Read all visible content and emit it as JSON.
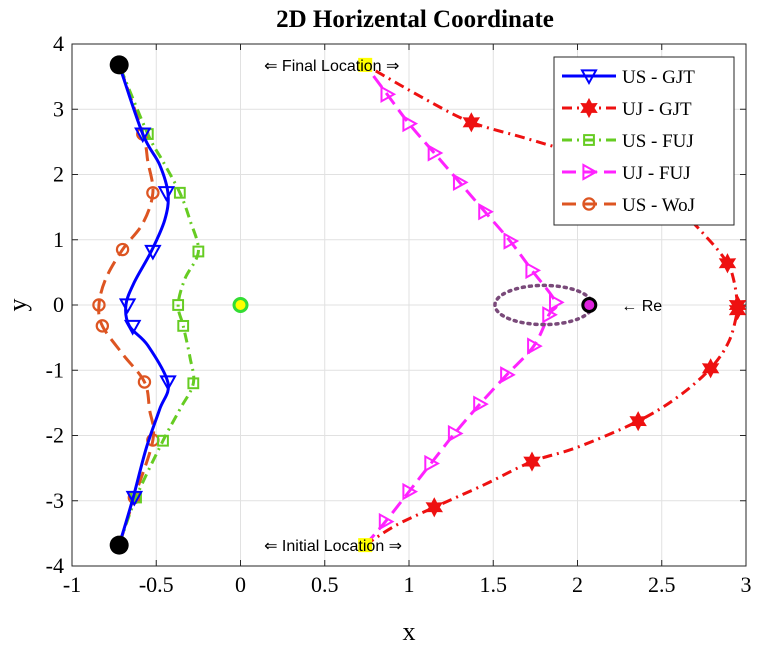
{
  "chart_data": {
    "type": "line",
    "title": "2D Horizental Coordinate",
    "xlabel": "x",
    "ylabel": "y",
    "xlim": [
      -1,
      3
    ],
    "ylim": [
      -4,
      4
    ],
    "grid": true,
    "legend_position": "top-right",
    "xticks": [
      -1,
      -0.5,
      0,
      0.5,
      1,
      1.5,
      2,
      2.5,
      3
    ],
    "xtick_labels": [
      "-1",
      "-0.5",
      "0",
      "0.5",
      "1",
      "1.5",
      "2",
      "2.5",
      "3"
    ],
    "yticks": [
      -4,
      -3,
      -2,
      -1,
      0,
      1,
      2,
      3,
      4
    ],
    "ytick_labels": [
      "-4",
      "-3",
      "-2",
      "-1",
      "0",
      "1",
      "2",
      "3",
      "4"
    ],
    "series": [
      {
        "name": "US - GJT",
        "color": "#0000ff",
        "line": "solid",
        "marker": "triangle-down",
        "curve": [
          [
            -0.72,
            -3.68
          ],
          [
            -0.64,
            -2.98
          ],
          [
            -0.56,
            -2.2
          ],
          [
            -0.48,
            -1.6
          ],
          [
            -0.43,
            -1.2
          ],
          [
            -0.55,
            -0.62
          ],
          [
            -0.66,
            -0.32
          ],
          [
            -0.68,
            0.0
          ],
          [
            -0.63,
            0.35
          ],
          [
            -0.53,
            0.82
          ],
          [
            -0.45,
            1.3
          ],
          [
            -0.43,
            1.7
          ],
          [
            -0.48,
            2.15
          ],
          [
            -0.58,
            2.62
          ],
          [
            -0.72,
            3.68
          ]
        ],
        "markers": [
          [
            -0.63,
            -2.95
          ],
          [
            -0.43,
            -1.18
          ],
          [
            -0.64,
            -0.33
          ],
          [
            -0.67,
            0.0
          ],
          [
            -0.52,
            0.82
          ],
          [
            -0.44,
            1.72
          ],
          [
            -0.58,
            2.62
          ]
        ]
      },
      {
        "name": "UJ - GJT",
        "color": "#ee1111",
        "line": "dashdot",
        "marker": "hexagram",
        "curve": [
          [
            0.74,
            -3.68
          ],
          [
            0.92,
            -3.38
          ],
          [
            1.15,
            -3.1
          ],
          [
            1.45,
            -2.75
          ],
          [
            1.73,
            -2.4
          ],
          [
            2.0,
            -2.18
          ],
          [
            2.36,
            -1.78
          ],
          [
            2.6,
            -1.4
          ],
          [
            2.79,
            -0.97
          ],
          [
            2.9,
            -0.55
          ],
          [
            2.95,
            -0.08
          ],
          [
            2.95,
            0.0
          ],
          [
            2.93,
            0.35
          ],
          [
            2.89,
            0.64
          ],
          [
            2.78,
            1.0
          ],
          [
            2.6,
            1.45
          ],
          [
            2.3,
            1.9
          ],
          [
            2.0,
            2.3
          ],
          [
            1.7,
            2.55
          ],
          [
            1.37,
            2.8
          ],
          [
            1.1,
            3.15
          ],
          [
            0.74,
            3.68
          ]
        ],
        "markers": [
          [
            1.15,
            -3.1
          ],
          [
            1.73,
            -2.4
          ],
          [
            2.36,
            -1.78
          ],
          [
            2.79,
            -0.97
          ],
          [
            2.95,
            -0.08
          ],
          [
            2.95,
            0.0
          ],
          [
            2.89,
            0.64
          ],
          [
            1.37,
            2.8
          ]
        ]
      },
      {
        "name": "US - FUJ",
        "color": "#66cc22",
        "line": "dashdot",
        "marker": "square",
        "curve": [
          [
            -0.72,
            -3.68
          ],
          [
            -0.62,
            -2.95
          ],
          [
            -0.46,
            -2.08
          ],
          [
            -0.36,
            -1.6
          ],
          [
            -0.28,
            -1.2
          ],
          [
            -0.3,
            -0.8
          ],
          [
            -0.34,
            -0.32
          ],
          [
            -0.37,
            0.0
          ],
          [
            -0.33,
            0.4
          ],
          [
            -0.25,
            0.82
          ],
          [
            -0.3,
            1.3
          ],
          [
            -0.36,
            1.72
          ],
          [
            -0.46,
            2.2
          ],
          [
            -0.55,
            2.62
          ],
          [
            -0.72,
            3.68
          ]
        ],
        "markers": [
          [
            -0.62,
            -2.95
          ],
          [
            -0.46,
            -2.08
          ],
          [
            -0.28,
            -1.2
          ],
          [
            -0.34,
            -0.32
          ],
          [
            -0.37,
            0.0
          ],
          [
            -0.25,
            0.82
          ],
          [
            -0.36,
            1.72
          ],
          [
            -0.55,
            2.62
          ]
        ]
      },
      {
        "name": "UJ - FUJ",
        "color": "#ff22ff",
        "line": "dashed",
        "marker": "triangle-right",
        "curve": [
          [
            0.74,
            -3.68
          ],
          [
            0.86,
            -3.32
          ],
          [
            1.0,
            -2.86
          ],
          [
            1.13,
            -2.43
          ],
          [
            1.27,
            -1.97
          ],
          [
            1.42,
            -1.52
          ],
          [
            1.58,
            -1.07
          ],
          [
            1.74,
            -0.63
          ],
          [
            1.83,
            -0.15
          ],
          [
            1.87,
            0.04
          ],
          [
            1.73,
            0.53
          ],
          [
            1.6,
            0.98
          ],
          [
            1.45,
            1.43
          ],
          [
            1.3,
            1.88
          ],
          [
            1.15,
            2.33
          ],
          [
            1.0,
            2.78
          ],
          [
            0.87,
            3.23
          ],
          [
            0.74,
            3.68
          ]
        ],
        "markers": [
          [
            0.86,
            -3.32
          ],
          [
            1.0,
            -2.86
          ],
          [
            1.13,
            -2.43
          ],
          [
            1.27,
            -1.97
          ],
          [
            1.42,
            -1.52
          ],
          [
            1.58,
            -1.07
          ],
          [
            1.74,
            -0.63
          ],
          [
            1.83,
            -0.15
          ],
          [
            1.87,
            0.04
          ],
          [
            1.73,
            0.53
          ],
          [
            1.6,
            0.98
          ],
          [
            1.45,
            1.43
          ],
          [
            1.3,
            1.88
          ],
          [
            1.15,
            2.33
          ],
          [
            1.0,
            2.78
          ],
          [
            0.87,
            3.23
          ]
        ]
      },
      {
        "name": "US - WoJ",
        "color": "#dd5522",
        "line": "dashed",
        "marker": "circle",
        "curve": [
          [
            -0.72,
            -3.68
          ],
          [
            -0.63,
            -2.95
          ],
          [
            -0.52,
            -2.07
          ],
          [
            -0.54,
            -1.6
          ],
          [
            -0.57,
            -1.18
          ],
          [
            -0.7,
            -0.75
          ],
          [
            -0.82,
            -0.32
          ],
          [
            -0.84,
            0.0
          ],
          [
            -0.8,
            0.4
          ],
          [
            -0.7,
            0.85
          ],
          [
            -0.58,
            1.25
          ],
          [
            -0.52,
            1.72
          ],
          [
            -0.55,
            2.2
          ],
          [
            -0.58,
            2.62
          ],
          [
            -0.72,
            3.68
          ]
        ],
        "markers": [
          [
            -0.63,
            -2.95
          ],
          [
            -0.52,
            -2.07
          ],
          [
            -0.57,
            -1.18
          ],
          [
            -0.82,
            -0.32
          ],
          [
            -0.84,
            0.0
          ],
          [
            -0.7,
            0.85
          ],
          [
            -0.52,
            1.72
          ],
          [
            -0.58,
            2.62
          ]
        ]
      }
    ],
    "points": {
      "start_end": [
        [
          -0.72,
          3.68
        ],
        [
          -0.72,
          -3.68
        ]
      ],
      "start_end_color": "#000000",
      "yellow_squares": [
        [
          0.74,
          3.68
        ],
        [
          0.74,
          -3.68
        ]
      ],
      "yellow_color": "#ffff00",
      "origin": [
        0,
        0
      ],
      "origin_colors": [
        "#ffff00",
        "#33dd33"
      ],
      "re": [
        2.07,
        0
      ],
      "re_colors": [
        "#000000",
        "#dd22dd"
      ],
      "ellipse": {
        "cx": 1.8,
        "cy": 0.0,
        "rx": 0.29,
        "ry": 0.3,
        "color": "#7a4a7a"
      }
    },
    "annotations": [
      {
        "text": "⇐ Final Location ⇒",
        "x": 0.14,
        "y": 3.68
      },
      {
        "text": "⇐ Initial Location ⇒",
        "x": 0.14,
        "y": -3.68
      },
      {
        "text": "← Re",
        "x": 2.26,
        "y": 0.0
      }
    ]
  }
}
